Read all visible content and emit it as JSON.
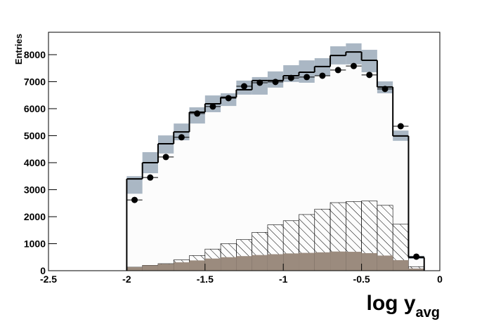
{
  "chart_data": {
    "type": "histogram",
    "y_label": "Entries",
    "x_label": "log y",
    "x_label_subscript": "avg",
    "bins": [
      -2.0,
      -1.9,
      -1.8,
      -1.7,
      -1.6,
      -1.5,
      -1.4,
      -1.3,
      -1.2,
      -1.1,
      -1.0,
      -0.9,
      -0.8,
      -0.7,
      -0.6,
      -0.5,
      -0.4,
      -0.3,
      -0.2,
      -0.1
    ],
    "error_band": {
      "color": "#aab7c4",
      "low": [
        2850,
        3610,
        4340,
        4830,
        5450,
        5870,
        6100,
        6520,
        6520,
        6780,
        6990,
        6960,
        7220,
        7640,
        7640,
        7350,
        6570,
        4810,
        440
      ],
      "high": [
        3500,
        4390,
        5010,
        5450,
        6050,
        6490,
        6570,
        7040,
        7170,
        7380,
        7610,
        7790,
        7870,
        8310,
        8420,
        8180,
        7010,
        5190,
        550
      ]
    },
    "histogram": {
      "color": "#000000",
      "fill": "#fcfcfc",
      "values": [
        3400,
        4000,
        4700,
        5140,
        5870,
        6180,
        6420,
        6700,
        7040,
        7040,
        7220,
        7350,
        7560,
        7970,
        8100,
        7790,
        6800,
        4990,
        490
      ]
    },
    "hatched": {
      "color": "#000000",
      "values": [
        130,
        200,
        260,
        400,
        560,
        800,
        1000,
        1150,
        1420,
        1700,
        1850,
        2080,
        2280,
        2520,
        2560,
        2580,
        2420,
        1720,
        150
      ]
    },
    "filled": {
      "color": "#9b8b7e",
      "values": [
        130,
        200,
        250,
        310,
        380,
        450,
        500,
        540,
        580,
        610,
        640,
        660,
        680,
        710,
        700,
        650,
        560,
        390,
        80
      ]
    },
    "data_points": {
      "color": "#000000",
      "values": [
        2620,
        3450,
        4210,
        4940,
        5820,
        6080,
        6390,
        6830,
        6960,
        6990,
        7140,
        7170,
        7220,
        7430,
        7580,
        7250,
        6730,
        5350,
        520
      ]
    },
    "xlim": [
      -2.5,
      0
    ],
    "xticks": [
      -2.5,
      -2,
      -1.5,
      -1,
      -0.5,
      0
    ],
    "ylim": [
      0,
      8830
    ],
    "yticks": [
      0,
      1000,
      2000,
      3000,
      4000,
      5000,
      6000,
      7000,
      8000
    ]
  }
}
